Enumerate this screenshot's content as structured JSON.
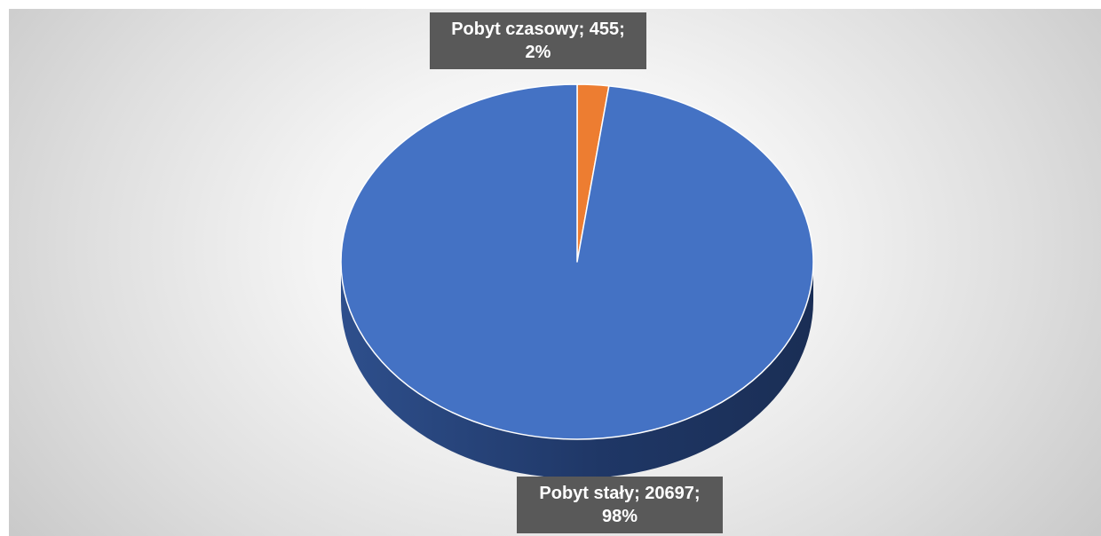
{
  "chart_data": {
    "type": "pie",
    "title": "",
    "three_d": true,
    "start_angle_deg": 0,
    "direction": "clockwise",
    "slices": [
      {
        "name": "Pobyt czasowy",
        "value": 455,
        "percent": "2%",
        "color": "#ED7D31",
        "label_line1": "Pobyt czasowy; 455;",
        "label_line2": "2%"
      },
      {
        "name": "Pobyt stały",
        "value": 20697,
        "percent": "98%",
        "color": "#4472C4",
        "label_line1": "Pobyt stały; 20697;",
        "label_line2": "98%"
      }
    ],
    "legend": "none",
    "data_label_background": "#595959",
    "data_label_text_color": "#FFFFFF"
  }
}
